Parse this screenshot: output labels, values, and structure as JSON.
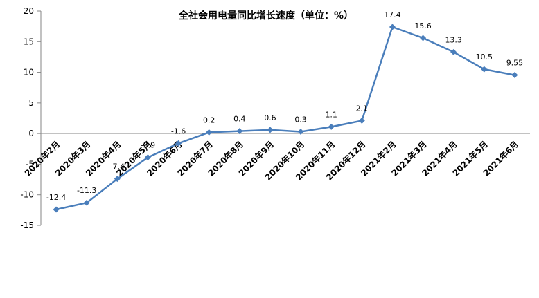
{
  "chart_data": {
    "type": "line",
    "title": "全社会用电量同比增长速度（单位：%）",
    "categories": [
      "2020年2月",
      "2020年3月",
      "2020年4月",
      "2020年5月",
      "2020年6月",
      "2020年7月",
      "2020年8月",
      "2020年9月",
      "2020年10月",
      "2020年11月",
      "2020年12月",
      "2021年2月",
      "2021年3月",
      "2021年4月",
      "2021年5月",
      "2021年6月"
    ],
    "values": [
      -12.4,
      -11.3,
      -7.4,
      -3.9,
      -1.6,
      0.2,
      0.4,
      0.6,
      0.3,
      1.1,
      2.1,
      17.4,
      15.6,
      13.3,
      10.5,
      9.55
    ],
    "value_labels": [
      "-12.4",
      "-11.3",
      "-7.4",
      "-3.9",
      "-1.6",
      "0.2",
      "0.4",
      "0.6",
      "0.3",
      "1.1",
      "2.1",
      "17.4",
      "15.6",
      "13.3",
      "10.5",
      "9.55"
    ],
    "y_ticks": [
      "20",
      "15",
      "10",
      "5",
      "0",
      "-5",
      "-10",
      "-15"
    ],
    "ylim": [
      -15,
      20
    ],
    "grid": false,
    "legend": "none",
    "series_color": "#4a7ebb"
  }
}
